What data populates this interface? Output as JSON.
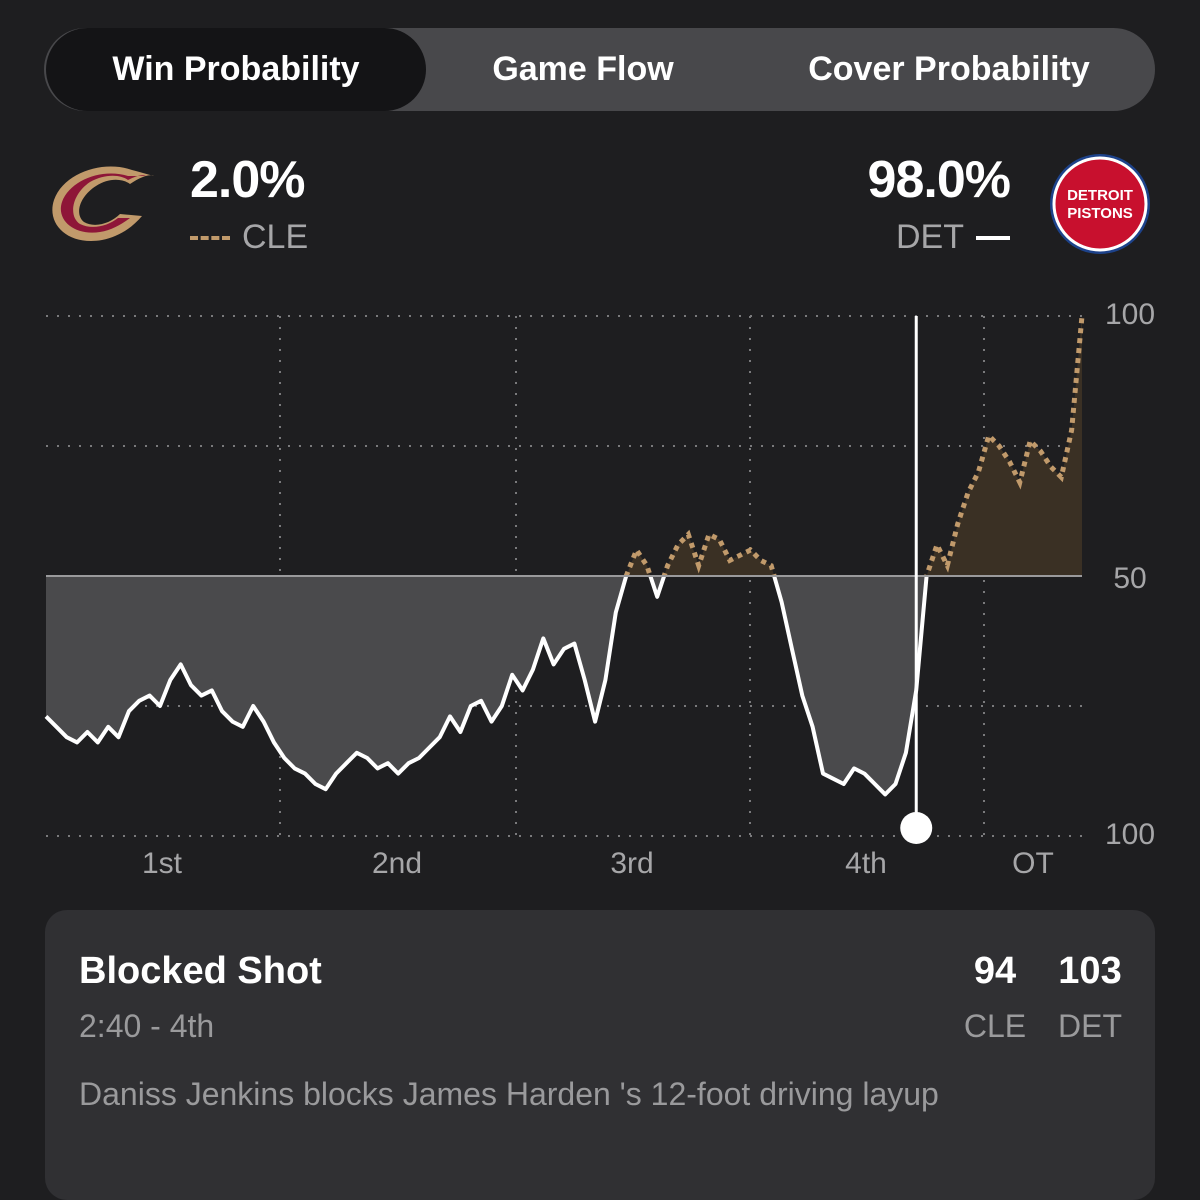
{
  "tabs": [
    {
      "label": "Win Probability",
      "active": true
    },
    {
      "label": "Game Flow",
      "active": false
    },
    {
      "label": "Cover Probability",
      "active": false
    }
  ],
  "teams": {
    "away": {
      "abbr": "CLE",
      "win_pct": "2.0%",
      "line_color": "#c19a6b",
      "logo_icon": "cavaliers-c-logo-icon"
    },
    "home": {
      "abbr": "DET",
      "win_pct": "98.0%",
      "line_color": "#ffffff",
      "logo_icon": "pistons-ball-logo-icon",
      "logo_text": [
        "DETROIT",
        "PISTONS"
      ]
    }
  },
  "chart_data": {
    "type": "line",
    "title": "",
    "x_ticks": [
      "1st",
      "2nd",
      "3rd",
      "4th",
      "OT"
    ],
    "y_ticks": [
      "100",
      "50",
      "100"
    ],
    "ylim": [
      0,
      100
    ],
    "baseline": 50,
    "marker_x": 0.84,
    "series": [
      {
        "name": "DET",
        "color": "#ffffff",
        "x": [
          0,
          0.01,
          0.02,
          0.03,
          0.04,
          0.05,
          0.06,
          0.07,
          0.08,
          0.09,
          0.1,
          0.11,
          0.12,
          0.13,
          0.14,
          0.15,
          0.16,
          0.17,
          0.18,
          0.19,
          0.2,
          0.21,
          0.22,
          0.23,
          0.24,
          0.25,
          0.26,
          0.27,
          0.28,
          0.29,
          0.3,
          0.31,
          0.32,
          0.33,
          0.34,
          0.35,
          0.36,
          0.37,
          0.38,
          0.39,
          0.4,
          0.41,
          0.42,
          0.43,
          0.44,
          0.45,
          0.46,
          0.47,
          0.48,
          0.49,
          0.5,
          0.51,
          0.52,
          0.53,
          0.54,
          0.55,
          0.56,
          0.57,
          0.58,
          0.59,
          0.6,
          0.61,
          0.62,
          0.63,
          0.64,
          0.65,
          0.66,
          0.67,
          0.68,
          0.69,
          0.7,
          0.71,
          0.72,
          0.73,
          0.74,
          0.75,
          0.76,
          0.77,
          0.78,
          0.79,
          0.8,
          0.81,
          0.82,
          0.83,
          0.84,
          0.85,
          0.86,
          0.87,
          0.88,
          0.89,
          0.9,
          0.91,
          0.92,
          0.93,
          0.94,
          0.95,
          0.96,
          0.97,
          0.98,
          0.99,
          1.0
        ],
        "y": [
          23,
          21,
          19,
          18,
          20,
          18,
          21,
          19,
          24,
          26,
          27,
          25,
          30,
          33,
          29,
          27,
          28,
          24,
          22,
          21,
          25,
          22,
          18,
          15,
          13,
          12,
          10,
          9,
          12,
          14,
          16,
          15,
          13,
          14,
          12,
          14,
          15,
          17,
          19,
          23,
          20,
          25,
          26,
          22,
          25,
          31,
          28,
          32,
          38,
          33,
          36,
          37,
          30,
          22,
          30,
          43,
          50,
          55,
          52,
          46,
          52,
          56,
          58,
          52,
          58,
          57,
          53,
          54,
          55,
          53,
          52,
          45,
          36,
          27,
          21,
          12,
          11,
          10,
          13,
          12,
          10,
          8,
          10,
          16,
          28,
          50,
          56,
          52,
          60,
          66,
          70,
          77,
          75,
          72,
          68,
          76,
          74,
          71,
          69,
          78,
          100
        ]
      }
    ]
  },
  "play": {
    "title": "Blocked Shot",
    "time": "2:40 - 4th",
    "away_score": "94",
    "home_score": "103",
    "away_abbr": "CLE",
    "home_abbr": "DET",
    "description": "Daniss Jenkins blocks James Harden 's 12-foot driving layup"
  }
}
